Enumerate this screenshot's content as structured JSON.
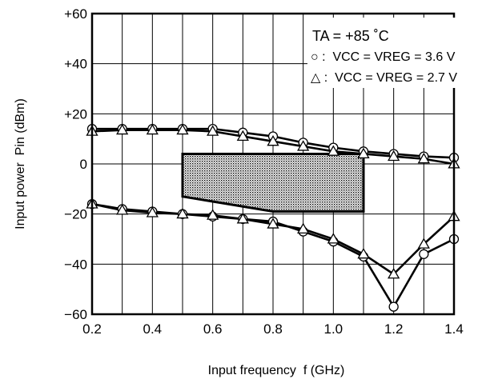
{
  "chart_data": {
    "type": "line",
    "xlabel": "Input frequency  f (GHz)",
    "ylabel": "Input power  Pin (dBm)",
    "xlim": [
      0.2,
      1.4
    ],
    "ylim": [
      -60,
      60
    ],
    "x_ticks": [
      "0.2",
      "0.4",
      "0.6",
      "0.8",
      "1.0",
      "1.2",
      "1.4"
    ],
    "y_ticks": [
      "−60",
      "−40",
      "−20",
      "0",
      "+20",
      "+40",
      "+60"
    ],
    "grid": true,
    "legend_position": "top-right",
    "legend": {
      "condition": "TA = +85 ˚C",
      "circle": "○ :  VCC = VREG = 3.6 V",
      "triangle": "△ :  VCC = VREG = 2.7 V"
    },
    "x": [
      0.2,
      0.3,
      0.4,
      0.5,
      0.6,
      0.7,
      0.8,
      0.9,
      1.0,
      1.1,
      1.2,
      1.3,
      1.4
    ],
    "series": [
      {
        "name": "VCC = VREG = 3.6 V (upper)",
        "marker": "circle",
        "values": [
          14,
          14,
          14,
          14,
          14,
          12.5,
          11,
          8.5,
          6.5,
          5,
          4,
          3,
          2.5
        ]
      },
      {
        "name": "VCC = VREG = 2.7 V (upper)",
        "marker": "triangle",
        "values": [
          13,
          13.5,
          13.5,
          13.5,
          13,
          11,
          9,
          7,
          5,
          4,
          3,
          2,
          0
        ]
      },
      {
        "name": "VCC = VREG = 3.6 V (lower)",
        "marker": "circle",
        "values": [
          -16,
          -18,
          -19,
          -20,
          -21,
          -22,
          -23,
          -27,
          -31,
          -37,
          -57,
          -36,
          -30
        ]
      },
      {
        "name": "VCC = VREG = 2.7 V (lower)",
        "marker": "triangle",
        "values": [
          -16,
          -18.5,
          -19.5,
          -20,
          -20.5,
          -22,
          -24,
          -26,
          -30,
          -36,
          -44,
          -32,
          -21
        ]
      }
    ],
    "operating_region": {
      "x": [
        0.5,
        1.1
      ],
      "top": 4,
      "bottom_left": -13,
      "bottom_knee_x": 0.8,
      "bottom_right": -19
    }
  }
}
